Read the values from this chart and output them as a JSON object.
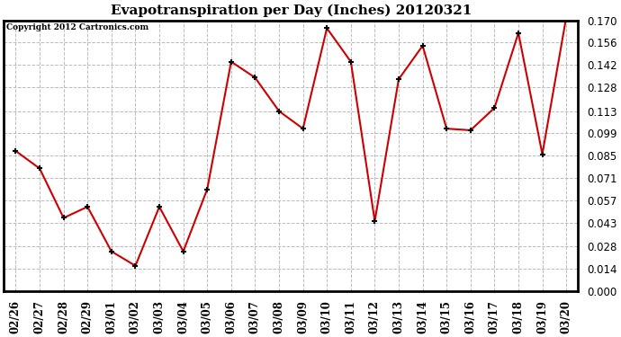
{
  "title": "Evapotranspiration per Day (Inches) 20120321",
  "copyright": "Copyright 2012 Cartronics.com",
  "dates": [
    "02/26",
    "02/27",
    "02/28",
    "02/29",
    "03/01",
    "03/02",
    "03/03",
    "03/04",
    "03/05",
    "03/06",
    "03/07",
    "03/08",
    "03/09",
    "03/10",
    "03/11",
    "03/12",
    "03/13",
    "03/14",
    "03/15",
    "03/16",
    "03/17",
    "03/18",
    "03/19",
    "03/20"
  ],
  "values": [
    0.088,
    0.077,
    0.046,
    0.053,
    0.025,
    0.016,
    0.053,
    0.025,
    0.064,
    0.144,
    0.134,
    0.113,
    0.102,
    0.165,
    0.144,
    0.044,
    0.133,
    0.154,
    0.102,
    0.101,
    0.115,
    0.162,
    0.086,
    0.172
  ],
  "line_color": "#cc0000",
  "marker": "+",
  "marker_color": "#000000",
  "marker_size": 5,
  "ylim": [
    0.0,
    0.17
  ],
  "yticks": [
    0.0,
    0.014,
    0.028,
    0.043,
    0.057,
    0.071,
    0.085,
    0.099,
    0.113,
    0.128,
    0.142,
    0.156,
    0.17
  ],
  "background_color": "#ffffff",
  "plot_bg_color": "#ffffff",
  "grid_color": "#bbbbbb",
  "title_fontsize": 11,
  "copyright_fontsize": 6.5,
  "tick_fontsize": 8.5,
  "xlabel_rotation": 90,
  "border_color": "#000000",
  "border_width": 2.0
}
